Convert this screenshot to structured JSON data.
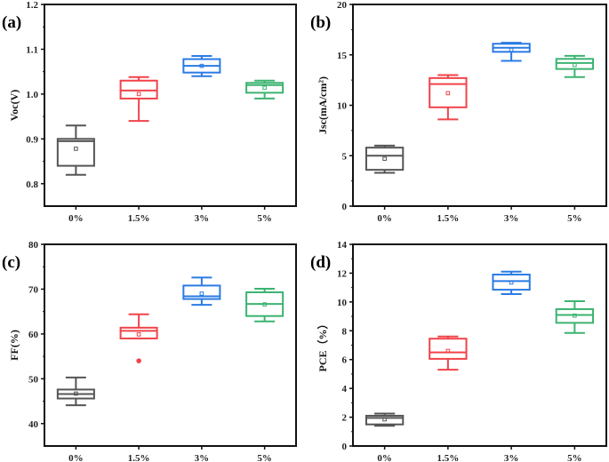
{
  "chart_data": [
    {
      "type": "box",
      "panel_label": "(a)",
      "ylabel": "Voc(V)",
      "ylim": [
        0.75,
        1.2
      ],
      "yticks": [
        0.8,
        0.9,
        1.0,
        1.1,
        1.2
      ],
      "ytick_labels": [
        "0.8",
        "0.9",
        "1.0",
        "1.1",
        "1.2"
      ],
      "categories": [
        "0%",
        "1.5%",
        "3%",
        "5%"
      ],
      "colors": [
        "#555555",
        "#f0434a",
        "#2a7be4",
        "#3cb371"
      ],
      "boxes": [
        {
          "min": 0.82,
          "q1": 0.84,
          "median": 0.895,
          "q3": 0.9,
          "max": 0.93,
          "mean": 0.878
        },
        {
          "min": 0.94,
          "q1": 0.99,
          "median": 1.008,
          "q3": 1.03,
          "max": 1.038,
          "mean": 1.0
        },
        {
          "min": 1.04,
          "q1": 1.048,
          "median": 1.063,
          "q3": 1.078,
          "max": 1.085,
          "mean": 1.063
        },
        {
          "min": 0.99,
          "q1": 1.003,
          "median": 1.02,
          "q3": 1.025,
          "max": 1.03,
          "mean": 1.014
        }
      ]
    },
    {
      "type": "box",
      "panel_label": "(b)",
      "ylabel": "Jsc(mA/cm²)",
      "ylim": [
        0,
        20
      ],
      "yticks": [
        0,
        5,
        10,
        15,
        20
      ],
      "ytick_labels": [
        "0",
        "5",
        "10",
        "15",
        "20"
      ],
      "categories": [
        "0%",
        "1.5%",
        "3%",
        "5%"
      ],
      "colors": [
        "#555555",
        "#f0434a",
        "#2a7be4",
        "#3cb371"
      ],
      "boxes": [
        {
          "min": 3.3,
          "q1": 3.6,
          "median": 5.0,
          "q3": 5.8,
          "max": 6.0,
          "mean": 4.7
        },
        {
          "min": 8.6,
          "q1": 9.8,
          "median": 12.1,
          "q3": 12.7,
          "max": 13.0,
          "mean": 11.2
        },
        {
          "min": 14.4,
          "q1": 15.3,
          "median": 15.7,
          "q3": 16.1,
          "max": 16.2,
          "mean": 15.5
        },
        {
          "min": 12.8,
          "q1": 13.6,
          "median": 14.2,
          "q3": 14.6,
          "max": 14.9,
          "mean": 14.0
        }
      ]
    },
    {
      "type": "box",
      "panel_label": "(c)",
      "ylabel": "FF(%)",
      "ylim": [
        35,
        80
      ],
      "yticks": [
        40,
        50,
        60,
        70,
        80
      ],
      "ytick_labels": [
        "40",
        "50",
        "60",
        "70",
        "80"
      ],
      "categories": [
        "0%",
        "1.5%",
        "3%",
        "5%"
      ],
      "colors": [
        "#555555",
        "#f0434a",
        "#2a7be4",
        "#3cb371"
      ],
      "boxes": [
        {
          "min": 44.1,
          "q1": 45.6,
          "median": 46.6,
          "q3": 47.6,
          "max": 50.3,
          "mean": 46.7
        },
        {
          "min": 59.0,
          "q1": 59.0,
          "median": 60.7,
          "q3": 61.4,
          "max": 64.4,
          "mean": 59.9,
          "outliers": [
            54.0
          ]
        },
        {
          "min": 66.5,
          "q1": 67.8,
          "median": 68.4,
          "q3": 70.8,
          "max": 72.6,
          "mean": 69.0
        },
        {
          "min": 62.8,
          "q1": 64.0,
          "median": 66.7,
          "q3": 69.3,
          "max": 70.1,
          "mean": 66.6
        }
      ]
    },
    {
      "type": "box",
      "panel_label": "(d)",
      "ylabel": "PCE（%）",
      "ylim": [
        0,
        14
      ],
      "yticks": [
        0,
        2,
        4,
        6,
        8,
        10,
        12,
        14
      ],
      "ytick_labels": [
        "0",
        "2",
        "4",
        "6",
        "8",
        "10",
        "12",
        "14"
      ],
      "categories": [
        "0%",
        "1.5%",
        "3%",
        "5%"
      ],
      "colors": [
        "#555555",
        "#f0434a",
        "#2a7be4",
        "#3cb371"
      ],
      "boxes": [
        {
          "min": 1.4,
          "q1": 1.5,
          "median": 1.95,
          "q3": 2.1,
          "max": 2.25,
          "mean": 1.85
        },
        {
          "min": 5.3,
          "q1": 6.05,
          "median": 6.5,
          "q3": 7.45,
          "max": 7.6,
          "mean": 6.6
        },
        {
          "min": 10.55,
          "q1": 10.85,
          "median": 11.45,
          "q3": 11.9,
          "max": 12.1,
          "mean": 11.35
        },
        {
          "min": 7.85,
          "q1": 8.55,
          "median": 9.1,
          "q3": 9.5,
          "max": 10.05,
          "mean": 9.05
        }
      ]
    }
  ]
}
